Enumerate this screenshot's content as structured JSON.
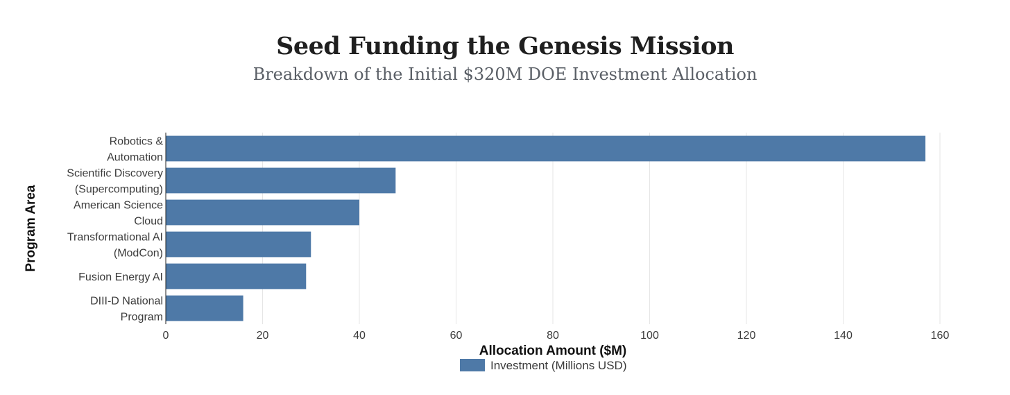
{
  "title": "Seed Funding the Genesis Mission",
  "subtitle": "Breakdown of the Initial $320M DOE Investment Allocation",
  "chart_data": {
    "type": "bar",
    "orientation": "horizontal",
    "categories": [
      [
        "Robotics &",
        "Automation"
      ],
      [
        "Scientific Discovery",
        "(Supercomputing)"
      ],
      [
        "American Science",
        "Cloud"
      ],
      [
        "Transformational AI",
        "(ModCon)"
      ],
      [
        "Fusion Energy AI"
      ],
      [
        "DIII-D National",
        "Program"
      ]
    ],
    "series": [
      {
        "name": "Investment (Millions USD)",
        "values": [
          157,
          47.5,
          40,
          30,
          29,
          16
        ],
        "color": "#4e79a7"
      }
    ],
    "xlabel": "Allocation Amount ($M)",
    "ylabel": "Program Area",
    "xlim": [
      0,
      160
    ],
    "xticks": [
      0,
      20,
      40,
      60,
      80,
      100,
      120,
      140,
      160
    ],
    "grid": "vertical",
    "legend_position": "bottom-center"
  }
}
